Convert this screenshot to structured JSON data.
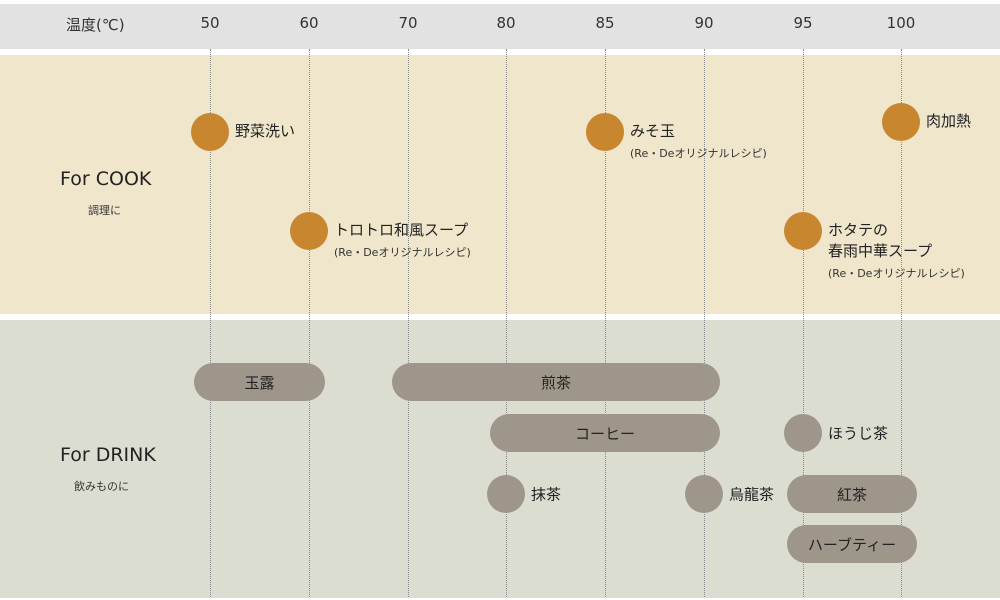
{
  "chart_data": {
    "type": "range-chart",
    "axis": {
      "label": "温度(℃)",
      "ticks": [
        50,
        60,
        70,
        80,
        85,
        90,
        95,
        100
      ],
      "grid": true
    },
    "sections": [
      {
        "title": "For COOK",
        "subtitle": "調理に",
        "items": [
          {
            "label": "野菜洗い",
            "note": "",
            "temp": 50
          },
          {
            "label": "トロトロ和風スープ",
            "note": "(Re・Deオリジナルレシピ)",
            "temp": 60
          },
          {
            "label": "みそ玉",
            "note": "(Re・Deオリジナルレシピ)",
            "temp": 85
          },
          {
            "label": "ホタテの\n春雨中華スープ",
            "note": "(Re・Deオリジナルレシピ)",
            "temp": 95
          },
          {
            "label": "肉加熱",
            "note": "",
            "temp": 100
          }
        ]
      },
      {
        "title": "For DRINK",
        "subtitle": "飲みものに",
        "items": [
          {
            "label": "玉露",
            "min": 50,
            "max": 60
          },
          {
            "label": "煎茶",
            "min": 70,
            "max": 90
          },
          {
            "label": "コーヒー",
            "min": 80,
            "max": 90
          },
          {
            "label": "ほうじ茶",
            "min": 95,
            "max": 95
          },
          {
            "label": "抹茶",
            "min": 80,
            "max": 80
          },
          {
            "label": "烏龍茶",
            "min": 90,
            "max": 90
          },
          {
            "label": "紅茶",
            "min": 95,
            "max": 100
          },
          {
            "label": "ハーブティー",
            "min": 95,
            "max": 100
          }
        ]
      }
    ],
    "colors": {
      "header": "#e2e2e2",
      "cook_background": "#efe6cc",
      "drink_background": "#dcddd1",
      "cook_marker": "#c8862f",
      "drink_marker": "#9e968b"
    }
  }
}
